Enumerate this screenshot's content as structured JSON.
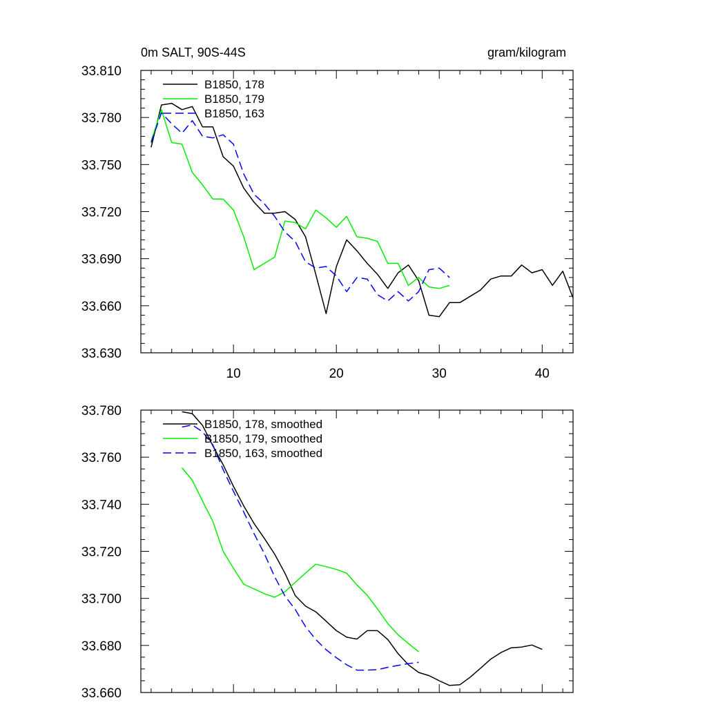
{
  "chart_data": [
    {
      "type": "line",
      "title": "0m SALT, 90S-44S",
      "units": "gram/kilogram",
      "xlabel": "",
      "ylabel": "",
      "xlim": [
        1,
        43
      ],
      "ylim": [
        33.63,
        33.81
      ],
      "xticks": [
        10,
        20,
        30,
        40
      ],
      "xtick_labels": [
        "10",
        "20",
        "30",
        "40"
      ],
      "yticks": [
        33.63,
        33.66,
        33.69,
        33.72,
        33.75,
        33.78,
        33.81
      ],
      "ytick_labels": [
        "33.630",
        "33.660",
        "33.690",
        "33.720",
        "33.750",
        "33.780",
        "33.810"
      ],
      "legend_position": "top-left",
      "series": [
        {
          "name": "B1850, 178",
          "color": "#000000",
          "style": "solid",
          "x": [
            2,
            3,
            4,
            5,
            6,
            7,
            8,
            9,
            10,
            11,
            12,
            13,
            14,
            15,
            16,
            17,
            18,
            19,
            20,
            21,
            22,
            23,
            24,
            25,
            26,
            27,
            28,
            29,
            30,
            31,
            32,
            33,
            34,
            35,
            36,
            37,
            38,
            39,
            40,
            41,
            42,
            43
          ],
          "y": [
            33.761,
            33.788,
            33.789,
            33.785,
            33.787,
            33.774,
            33.774,
            33.755,
            33.749,
            33.735,
            33.726,
            33.719,
            33.719,
            33.72,
            33.715,
            33.704,
            33.68,
            33.655,
            33.685,
            33.702,
            33.695,
            33.687,
            33.68,
            33.671,
            33.681,
            33.686,
            33.676,
            33.654,
            33.653,
            33.662,
            33.662,
            33.666,
            33.67,
            33.677,
            33.679,
            33.679,
            33.686,
            33.681,
            33.683,
            33.673,
            33.682,
            33.665
          ]
        },
        {
          "name": "B1850, 179",
          "color": "#00ee00",
          "style": "solid",
          "x": [
            2,
            3,
            4,
            5,
            6,
            7,
            8,
            9,
            10,
            11,
            12,
            13,
            14,
            15,
            16,
            17,
            18,
            19,
            20,
            21,
            22,
            23,
            24,
            25,
            26,
            27,
            28,
            29,
            30,
            31
          ],
          "y": [
            33.765,
            33.785,
            33.764,
            33.763,
            33.745,
            33.737,
            33.728,
            33.728,
            33.721,
            33.704,
            33.683,
            33.687,
            33.691,
            33.714,
            33.713,
            33.709,
            33.721,
            33.716,
            33.71,
            33.717,
            33.704,
            33.703,
            33.701,
            33.687,
            33.687,
            33.673,
            33.678,
            33.672,
            33.671,
            33.673
          ]
        },
        {
          "name": "B1850, 163",
          "color": "#0000ff",
          "style": "dashed",
          "x": [
            2,
            3,
            4,
            5,
            6,
            7,
            8,
            9,
            10,
            11,
            12,
            13,
            14,
            15,
            16,
            17,
            18,
            19,
            20,
            21,
            22,
            23,
            24,
            25,
            26,
            27,
            28,
            29,
            30,
            31
          ],
          "y": [
            33.764,
            33.783,
            33.776,
            33.77,
            33.778,
            33.768,
            33.767,
            33.769,
            33.763,
            33.744,
            33.731,
            33.725,
            33.717,
            33.707,
            33.701,
            33.688,
            33.684,
            33.685,
            33.679,
            33.669,
            33.678,
            33.677,
            33.667,
            33.663,
            33.669,
            33.663,
            33.669,
            33.683,
            33.684,
            33.678
          ]
        }
      ]
    },
    {
      "type": "line",
      "title": "",
      "xlabel": "",
      "ylabel": "",
      "xlim": [
        1,
        43
      ],
      "ylim": [
        33.66,
        33.78
      ],
      "xticks": [
        10,
        20,
        30,
        40
      ],
      "xtick_labels": [],
      "yticks": [
        33.66,
        33.68,
        33.7,
        33.72,
        33.74,
        33.76,
        33.78
      ],
      "ytick_labels": [
        "33.660",
        "33.680",
        "33.700",
        "33.720",
        "33.740",
        "33.760",
        "33.780"
      ],
      "legend_position": "top-left",
      "series": [
        {
          "name": "B1850, 178, smoothed",
          "color": "#000000",
          "style": "solid",
          "x": [
            5,
            6,
            7,
            8,
            9,
            10,
            11,
            12,
            13,
            14,
            15,
            16,
            17,
            18,
            19,
            20,
            21,
            22,
            23,
            24,
            25,
            26,
            27,
            28,
            29,
            30,
            31,
            32,
            33,
            34,
            35,
            36,
            37,
            38,
            39,
            40
          ],
          "y": [
            33.7793,
            33.7785,
            33.7735,
            33.7648,
            33.7568,
            33.7476,
            33.7393,
            33.7318,
            33.7255,
            33.7188,
            33.7107,
            33.7012,
            33.6967,
            33.6943,
            33.6903,
            33.6863,
            33.6835,
            33.6827,
            33.6863,
            33.6863,
            33.6825,
            33.6765,
            33.6718,
            33.6685,
            33.6672,
            33.665,
            33.663,
            33.6633,
            33.6665,
            33.6703,
            33.6742,
            33.677,
            33.679,
            33.6793,
            33.6802,
            33.6783
          ]
        },
        {
          "name": "B1850, 179, smoothed",
          "color": "#00ee00",
          "style": "solid",
          "x": [
            5,
            6,
            7,
            8,
            9,
            10,
            11,
            12,
            13,
            14,
            15,
            16,
            17,
            18,
            19,
            20,
            21,
            22,
            23,
            24,
            25,
            26,
            27,
            28
          ],
          "y": [
            33.7555,
            33.7502,
            33.7413,
            33.7327,
            33.72,
            33.7128,
            33.706,
            33.704,
            33.702,
            33.7005,
            33.7028,
            33.7068,
            33.7108,
            33.7145,
            33.7135,
            33.7123,
            33.7107,
            33.7057,
            33.7013,
            33.6955,
            33.6893,
            33.6845,
            33.6808,
            33.6773
          ]
        },
        {
          "name": "B1850, 163, smoothed",
          "color": "#0000ff",
          "style": "dashed",
          "x": [
            5,
            6,
            7,
            8,
            9,
            10,
            11,
            12,
            13,
            14,
            15,
            16,
            17,
            18,
            19,
            20,
            21,
            22,
            23,
            24,
            25,
            26,
            27,
            28
          ],
          "y": [
            33.7728,
            33.7737,
            33.7708,
            33.7652,
            33.7547,
            33.7455,
            33.7367,
            33.7275,
            33.719,
            33.7092,
            33.701,
            33.6953,
            33.688,
            33.6825,
            33.6782,
            33.6748,
            33.6718,
            33.6695,
            33.6695,
            33.6697,
            33.6707,
            33.6715,
            33.6723,
            33.6728
          ]
        }
      ]
    }
  ]
}
